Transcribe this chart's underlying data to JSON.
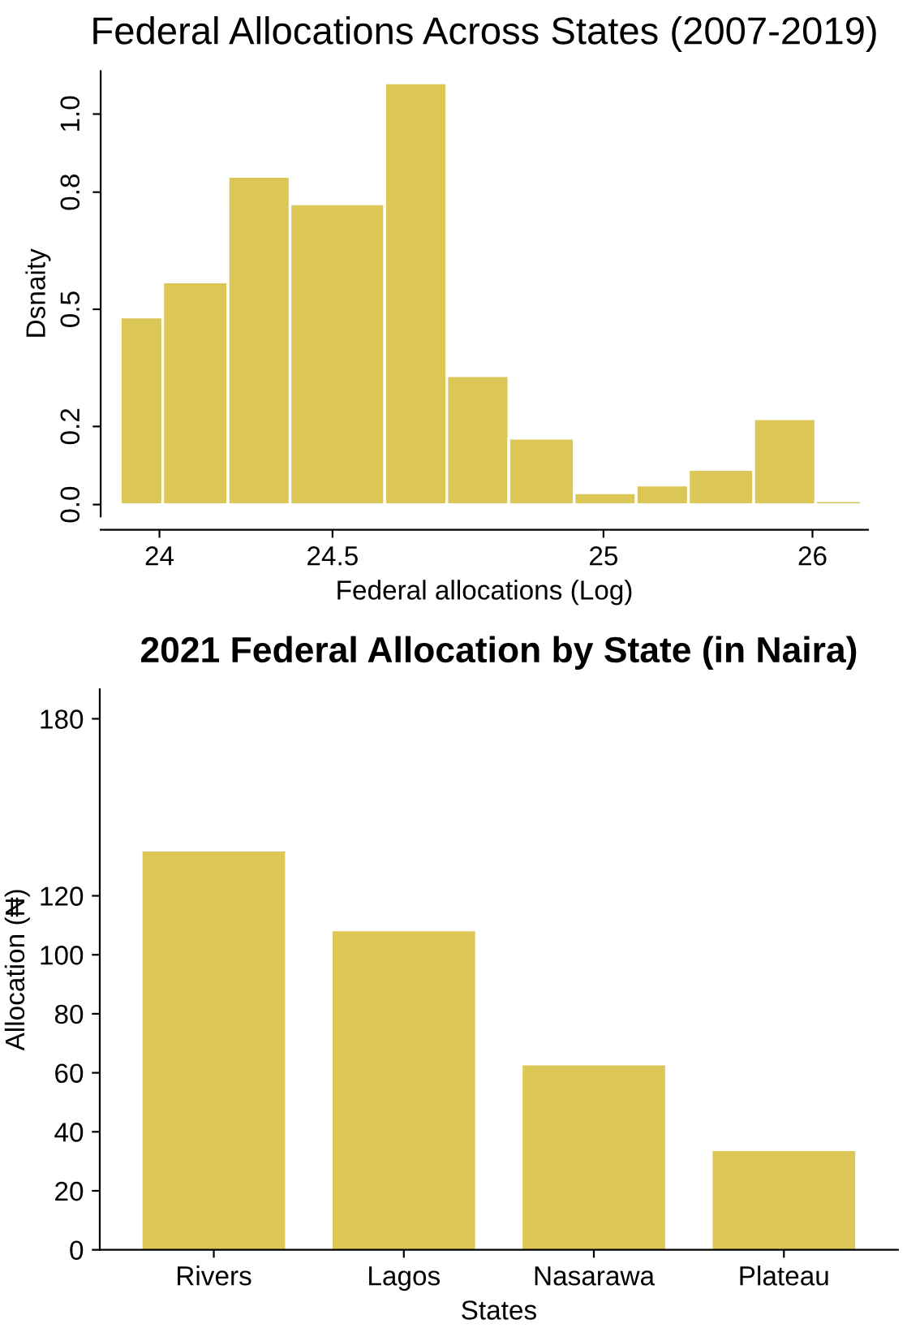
{
  "chart_data": [
    {
      "type": "histogram",
      "title": "Federal Allocations Across States (2007-2019)",
      "xlabel": "Federal allocations (Log)",
      "ylabel": "Dsnaity",
      "color": "#dcc656",
      "bins": [
        23.88,
        24.01,
        24.21,
        24.4,
        24.69,
        24.88,
        25.07,
        25.27,
        25.46,
        25.62,
        25.82,
        26.01,
        26.15
      ],
      "values": [
        0.48,
        0.57,
        0.84,
        0.77,
        1.08,
        0.33,
        0.17,
        0.03,
        0.05,
        0.09,
        0.22,
        0.01
      ],
      "xlim": [
        23.82,
        26.17
      ],
      "xticks": [
        24,
        {
          "value": 24.53,
          "label": "24.5"
        },
        {
          "value": 25.36,
          "label": "25"
        },
        26
      ],
      "ylim": [
        -0.03,
        1.11
      ],
      "yticks": [
        {
          "value": 0,
          "label": "0.0"
        },
        0.2,
        0.5,
        0.8,
        {
          "value": 1,
          "label": "1.0"
        }
      ],
      "grid": false
    },
    {
      "type": "bar",
      "title": "2021 Federal Allocation by State (in Naira)",
      "xlabel": "States",
      "ylabel": "Allocation (₦)",
      "color": "#dcc656",
      "categories": [
        "Rivers",
        "Lagos",
        "Nasarawa",
        "Plateau"
      ],
      "values": [
        135,
        108,
        62.5,
        33.5
      ],
      "ylim": [
        0,
        190
      ],
      "yticks": [
        0,
        20,
        40,
        60,
        80,
        100,
        120,
        180
      ],
      "grid": false
    }
  ]
}
